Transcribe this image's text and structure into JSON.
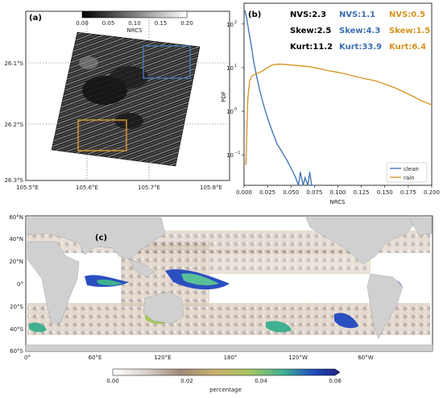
{
  "panel_a": {
    "label": "(a)",
    "colorbar": {
      "label": "NRCS",
      "ticks": [
        "0.00",
        "0.05",
        "0.10",
        "0.15",
        "0.20"
      ],
      "range": [
        0.0,
        0.2
      ]
    },
    "lon_ticks": [
      "105.5°E",
      "105.6°E",
      "105.7°E",
      "105.8°E"
    ],
    "lat_ticks": [
      "26.1°S",
      "26.2°S",
      "26.3°S"
    ],
    "boxes": [
      {
        "name": "clean",
        "color": "#4a78b8"
      },
      {
        "name": "rain",
        "color": "#d9a030"
      }
    ]
  },
  "panel_c": {
    "label": "(c)",
    "lon_ticks": [
      "0°",
      "60°E",
      "120°E",
      "180°",
      "120°W",
      "60°W"
    ],
    "lat_ticks": [
      "60°N",
      "40°N",
      "20°N",
      "0°",
      "20°S",
      "40°S",
      "60°S"
    ],
    "colorbar": {
      "label": "percentage",
      "ticks": [
        "0.00",
        "0.02",
        "0.04",
        "0.06"
      ],
      "range": [
        0.0,
        0.06
      ]
    }
  },
  "chart_data": [
    {
      "type": "line",
      "panel": "(b)",
      "xlabel": "NRCS",
      "ylabel": "PDF",
      "xlim": [
        0.0,
        0.2
      ],
      "ylim_log": [
        0.02,
        300
      ],
      "yscale": "log",
      "x_ticks": [
        "0.000",
        "0.025",
        "0.050",
        "0.075",
        "0.100",
        "0.125",
        "0.150",
        "0.175",
        "0.200"
      ],
      "y_ticks": [
        {
          "label": "10",
          "exp": "2",
          "value": 100
        },
        {
          "label": "10",
          "exp": "1",
          "value": 10
        },
        {
          "label": "10",
          "exp": "0",
          "value": 1
        },
        {
          "label": "10",
          "exp": "−1",
          "value": 0.1
        }
      ],
      "legend_position": "lower-right",
      "series": [
        {
          "name": "clean",
          "color": "#3a6fb0",
          "x": [
            0.001,
            0.003,
            0.005,
            0.008,
            0.01,
            0.013,
            0.016,
            0.02,
            0.025,
            0.03,
            0.035,
            0.04,
            0.045,
            0.05,
            0.055,
            0.058,
            0.06,
            0.063,
            0.065,
            0.068,
            0.07,
            0.072,
            0.075
          ],
          "y": [
            200,
            130,
            70,
            30,
            15,
            7,
            3.5,
            1.6,
            0.7,
            0.35,
            0.18,
            0.12,
            0.08,
            0.05,
            0.03,
            0.02,
            0.04,
            0.02,
            0.03,
            0.02,
            0.04,
            0.02,
            0.02
          ]
        },
        {
          "name": "rain",
          "color": "#d4931f",
          "x": [
            0.002,
            0.004,
            0.006,
            0.008,
            0.01,
            0.015,
            0.02,
            0.025,
            0.03,
            0.035,
            0.04,
            0.05,
            0.06,
            0.07,
            0.08,
            0.09,
            0.1,
            0.11,
            0.12,
            0.13,
            0.14,
            0.15,
            0.16,
            0.17,
            0.18,
            0.19,
            0.2
          ],
          "y": [
            0.06,
            2.0,
            5.0,
            6.2,
            6.8,
            7.5,
            8.5,
            10,
            11.5,
            12,
            12,
            11.5,
            11,
            10.5,
            9.5,
            8.5,
            7.8,
            7,
            6.2,
            5.5,
            5,
            4.2,
            3.5,
            2.8,
            2.2,
            1.7,
            1.4
          ]
        }
      ],
      "stats": [
        [
          "NVS:2.3",
          "NVS:1.1",
          "NVS:0.5"
        ],
        [
          "Skew:2.5",
          "Skew:4.3",
          "Skew:1.5"
        ],
        [
          "Kurt:11.2",
          "Kurt:33.9",
          "Kurt:6.4"
        ]
      ],
      "stats_colors": [
        "#000000",
        "#3a6fb0",
        "#d4931f"
      ]
    }
  ]
}
